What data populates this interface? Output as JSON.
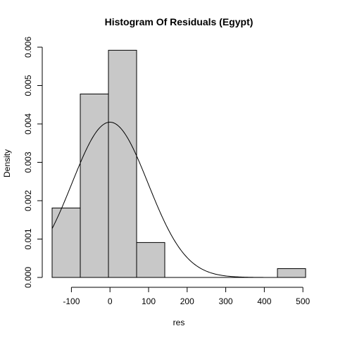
{
  "chart_data": {
    "type": "bar",
    "title": "Histogram Of Residuals (Egypt)",
    "xlabel": "res",
    "ylabel": "Density",
    "xlim": [
      -155,
      505
    ],
    "ylim": [
      0,
      0.006
    ],
    "x_ticks": [
      -100,
      0,
      100,
      200,
      300,
      400,
      500
    ],
    "y_ticks": [
      0.0,
      0.001,
      0.002,
      0.003,
      0.004,
      0.005,
      0.006
    ],
    "y_tick_labels": [
      "0.000",
      "0.001",
      "0.002",
      "0.003",
      "0.004",
      "0.005",
      "0.006"
    ],
    "bins": [
      {
        "start": -150,
        "end": -77,
        "density": 0.00181
      },
      {
        "start": -77,
        "end": -4,
        "density": 0.00478
      },
      {
        "start": -4,
        "end": 69,
        "density": 0.00592
      },
      {
        "start": 69,
        "end": 142,
        "density": 0.00091
      },
      {
        "start": 142,
        "end": 215,
        "density": 0
      },
      {
        "start": 215,
        "end": 288,
        "density": 0
      },
      {
        "start": 288,
        "end": 361,
        "density": 0
      },
      {
        "start": 361,
        "end": 434,
        "density": 0
      },
      {
        "start": 434,
        "end": 507,
        "density": 0.00023
      }
    ],
    "normal_curve": {
      "mean": 0,
      "sd": 98.6,
      "x_range": [
        -150,
        507
      ]
    },
    "grid": false,
    "legend": "none"
  }
}
